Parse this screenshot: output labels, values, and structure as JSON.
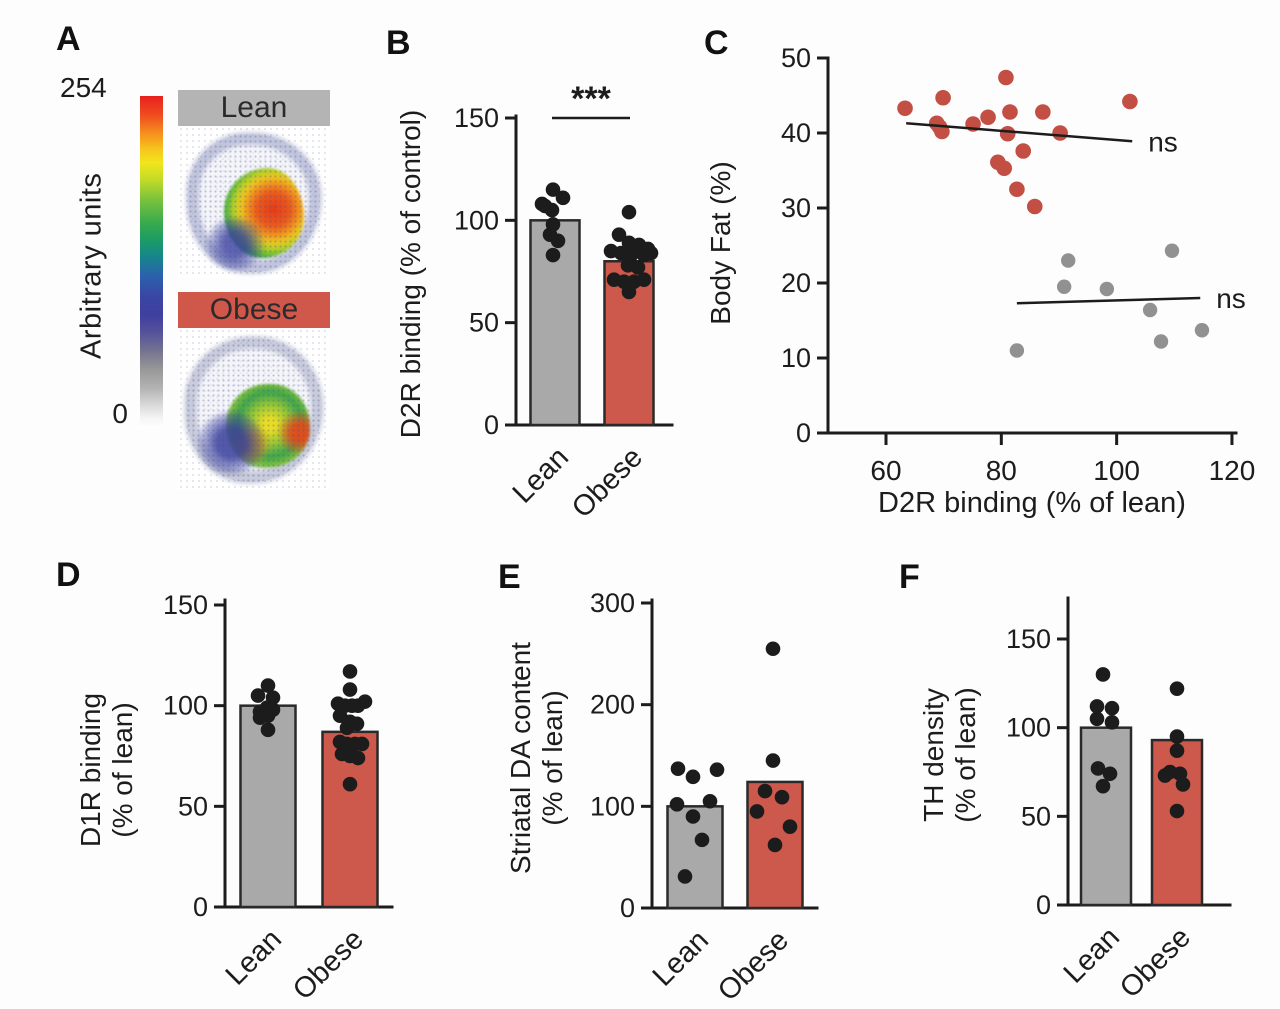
{
  "colors": {
    "background": "#fdfdfd",
    "axis": "#1c1c1c",
    "point": "#1c1c1c",
    "bar_gray": "#a9a9a9",
    "bar_red": "#cc594b",
    "bar_border": "#2a2a2a",
    "scatter_red": "#c24e44",
    "scatter_gray": "#919191",
    "header_text": "#2b2b2b"
  },
  "panel_a": {
    "letter": "A",
    "colorbar": {
      "top_label": "254",
      "bottom_label": "0",
      "axis_label": "Arbitrary units"
    },
    "sections": [
      {
        "label": "Lean",
        "header_color": "#b4b4b4"
      },
      {
        "label": "Obese",
        "header_color": "#d0584b"
      }
    ]
  },
  "chart_data": [
    {
      "id": "B",
      "letter": "B",
      "type": "bar",
      "ylabel_lines": [
        "D2R binding (% of control)"
      ],
      "categories": [
        "Lean",
        "Obese"
      ],
      "values": [
        100,
        80
      ],
      "bar_colors": [
        "#a9a9a9",
        "#cc594b"
      ],
      "yticks": [
        0,
        50,
        100,
        150
      ],
      "ylim": [
        0,
        150
      ],
      "significance": "***",
      "points": [
        [
          [
            -2,
            115
          ],
          [
            8,
            111
          ],
          [
            -13,
            108
          ],
          [
            -10,
            107
          ],
          [
            -3,
            105
          ],
          [
            -2,
            98
          ],
          [
            -5,
            93
          ],
          [
            3,
            90
          ],
          [
            -2,
            83
          ]
        ],
        [
          [
            0,
            104
          ],
          [
            -10,
            93
          ],
          [
            0,
            89
          ],
          [
            10,
            88
          ],
          [
            19,
            86
          ],
          [
            -18,
            85
          ],
          [
            -8,
            84
          ],
          [
            2,
            83
          ],
          [
            15,
            83
          ],
          [
            22,
            84
          ],
          [
            -1,
            78
          ],
          [
            9,
            77
          ],
          [
            -15,
            71
          ],
          [
            -5,
            70
          ],
          [
            5,
            70
          ],
          [
            15,
            71
          ],
          [
            0,
            65
          ]
        ]
      ]
    },
    {
      "id": "C",
      "letter": "C",
      "type": "scatter",
      "xlabel": "D2R binding (% of lean)",
      "ylabel_lines": [
        "Body Fat (%)"
      ],
      "xticks": [
        60,
        80,
        100,
        120
      ],
      "yticks": [
        0,
        10,
        20,
        30,
        40,
        50
      ],
      "xlim": [
        50,
        120
      ],
      "ylim": [
        0,
        50
      ],
      "series": [
        {
          "name": "Obese",
          "color": "#c24e44",
          "r": 7.8,
          "points": [
            [
              63.3,
              43.3
            ],
            [
              69.9,
              44.7
            ],
            [
              80.8,
              47.4
            ],
            [
              68.8,
              41.3
            ],
            [
              69.3,
              40.8
            ],
            [
              69.7,
              40.2
            ],
            [
              75.1,
              41.2
            ],
            [
              77.7,
              42.1
            ],
            [
              81.5,
              42.8
            ],
            [
              87.2,
              42.8
            ],
            [
              81.1,
              39.9
            ],
            [
              90.2,
              40.0
            ],
            [
              83.8,
              37.6
            ],
            [
              79.4,
              36.1
            ],
            [
              80.5,
              35.3
            ],
            [
              82.7,
              32.5
            ],
            [
              85.8,
              30.2
            ],
            [
              102.3,
              44.2
            ]
          ],
          "trend": [
            [
              63.5,
              41.3
            ],
            [
              102.7,
              38.9
            ]
          ],
          "trend_label": "ns"
        },
        {
          "name": "Lean",
          "color": "#919191",
          "r": 7.2,
          "points": [
            [
              82.7,
              11.0
            ],
            [
              90.9,
              19.5
            ],
            [
              91.6,
              23.0
            ],
            [
              98.3,
              19.2
            ],
            [
              105.8,
              16.4
            ],
            [
              107.7,
              12.2
            ],
            [
              109.6,
              24.3
            ],
            [
              114.8,
              13.7
            ]
          ],
          "trend": [
            [
              82.7,
              17.3
            ],
            [
              114.5,
              18.0
            ]
          ],
          "trend_label": "ns"
        }
      ]
    },
    {
      "id": "D",
      "letter": "D",
      "type": "bar",
      "ylabel_lines": [
        "D1R binding",
        "(% of lean)"
      ],
      "categories": [
        "Lean",
        "Obese"
      ],
      "values": [
        100,
        87
      ],
      "bar_colors": [
        "#a9a9a9",
        "#cc594b"
      ],
      "yticks": [
        0,
        50,
        100,
        150
      ],
      "ylim": [
        0,
        150
      ],
      "points": [
        [
          [
            0,
            110
          ],
          [
            -10,
            105
          ],
          [
            5,
            104
          ],
          [
            -1,
            99
          ],
          [
            5,
            98
          ],
          [
            -8,
            97
          ],
          [
            0,
            95
          ],
          [
            -8,
            94
          ],
          [
            0,
            88
          ]
        ],
        [
          [
            0,
            117
          ],
          [
            0,
            108
          ],
          [
            15,
            102
          ],
          [
            -12,
            101
          ],
          [
            -5,
            100
          ],
          [
            2,
            100
          ],
          [
            8,
            100
          ],
          [
            -10,
            95
          ],
          [
            0,
            92
          ],
          [
            7,
            91
          ],
          [
            -3,
            89
          ],
          [
            -10,
            82
          ],
          [
            -3,
            81
          ],
          [
            5,
            81
          ],
          [
            12,
            81
          ],
          [
            -8,
            76
          ],
          [
            0,
            75
          ],
          [
            8,
            74
          ],
          [
            0,
            61
          ]
        ]
      ]
    },
    {
      "id": "E",
      "letter": "E",
      "type": "bar",
      "ylabel_lines": [
        "Striatal DA content",
        "(% of lean)"
      ],
      "categories": [
        "Lean",
        "Obese"
      ],
      "values": [
        100,
        124
      ],
      "bar_colors": [
        "#a9a9a9",
        "#cc594b"
      ],
      "yticks": [
        0,
        100,
        200,
        300
      ],
      "ylim": [
        0,
        300
      ],
      "points": [
        [
          [
            -17,
            137
          ],
          [
            22,
            136
          ],
          [
            -2,
            129
          ],
          [
            15,
            105
          ],
          [
            -18,
            102
          ],
          [
            -2,
            90
          ],
          [
            7,
            67
          ],
          [
            -10,
            31
          ]
        ],
        [
          [
            -2,
            255
          ],
          [
            -2,
            145
          ],
          [
            -10,
            115
          ],
          [
            7,
            109
          ],
          [
            -18,
            95
          ],
          [
            15,
            80
          ],
          [
            0,
            62
          ]
        ]
      ]
    },
    {
      "id": "F",
      "letter": "F",
      "type": "bar",
      "ylabel_lines": [
        "TH density",
        "(% of lean)"
      ],
      "categories": [
        "Lean",
        "Obese"
      ],
      "values": [
        100,
        93
      ],
      "bar_colors": [
        "#a9a9a9",
        "#cc594b"
      ],
      "yticks": [
        0,
        50,
        100,
        150
      ],
      "ylim": [
        0,
        175
      ],
      "points": [
        [
          [
            -3,
            130
          ],
          [
            -9,
            112
          ],
          [
            6,
            111
          ],
          [
            -9,
            105
          ],
          [
            6,
            103
          ],
          [
            -8,
            77
          ],
          [
            4,
            74
          ],
          [
            -3,
            67
          ]
        ],
        [
          [
            0,
            122
          ],
          [
            0,
            95
          ],
          [
            0,
            87
          ],
          [
            -7,
            75
          ],
          [
            3,
            74
          ],
          [
            -12,
            73
          ],
          [
            6,
            68
          ],
          [
            0,
            53
          ]
        ]
      ]
    }
  ]
}
